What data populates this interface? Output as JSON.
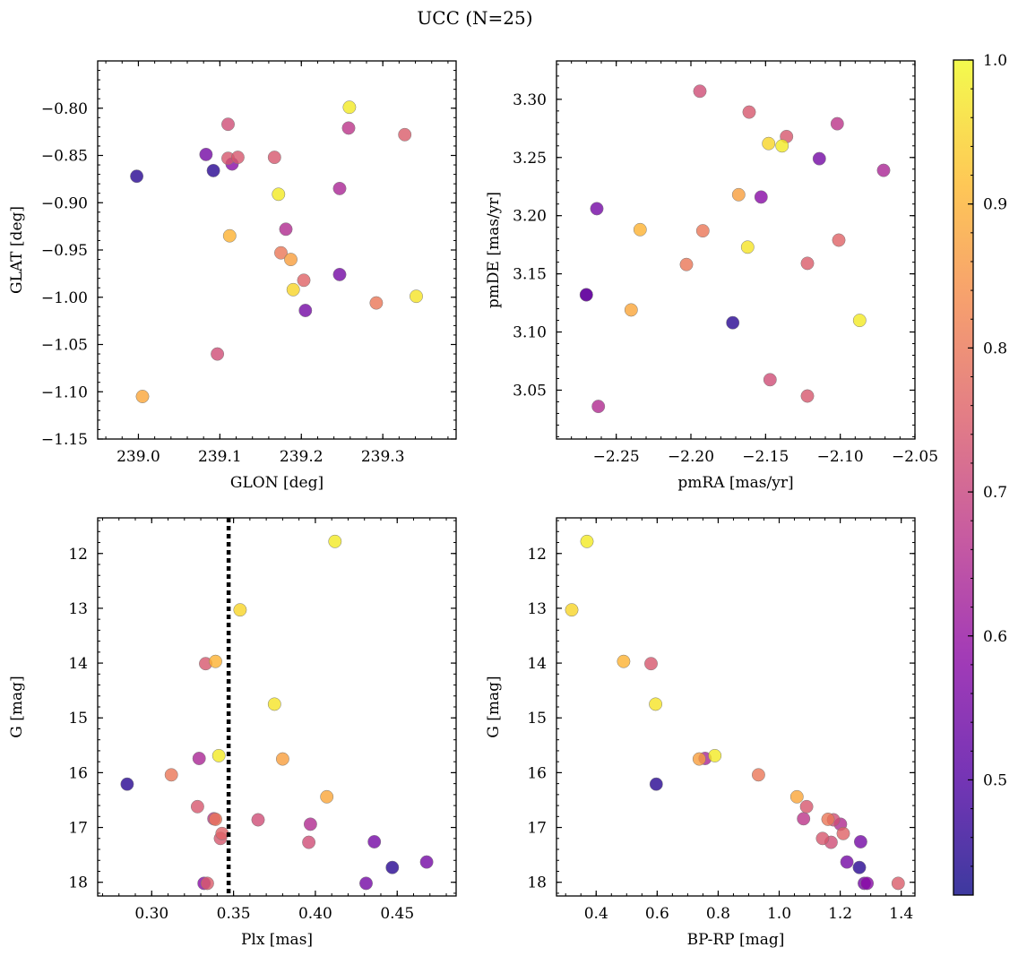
{
  "figure": {
    "title": "UCC (N=25)"
  },
  "colorbar": {
    "min": 0.42,
    "max": 1.0,
    "ticks": [
      0.5,
      0.6,
      0.7,
      0.8,
      0.9,
      1.0
    ],
    "tick_labels": [
      "0.5",
      "0.6",
      "0.7",
      "0.8",
      "0.9",
      "1.0"
    ],
    "colormap": "plasma",
    "alpha": 0.8
  },
  "stars": [
    {
      "glon": 238.998,
      "glat": -0.872,
      "pmra": -2.27,
      "pmde": 3.132,
      "plx": 0.285,
      "g": 16.21,
      "bprp": 0.597,
      "p": 0.45
    },
    {
      "glon": 239.005,
      "glat": -1.105,
      "pmra": -2.24,
      "pmde": 3.119,
      "plx": 0.407,
      "g": 16.44,
      "bprp": 1.058,
      "p": 0.88
    },
    {
      "glon": 239.083,
      "glat": -0.849,
      "pmra": -2.263,
      "pmde": 3.206,
      "plx": 0.468,
      "g": 17.63,
      "bprp": 1.222,
      "p": 0.55
    },
    {
      "glon": 239.092,
      "glat": -0.866,
      "pmra": -2.172,
      "pmde": 3.108,
      "plx": 0.447,
      "g": 17.73,
      "bprp": 1.263,
      "p": 0.45
    },
    {
      "glon": 239.097,
      "glat": -1.06,
      "pmra": -2.147,
      "pmde": 3.059,
      "plx": 0.365,
      "g": 16.86,
      "bprp": 1.178,
      "p": 0.72
    },
    {
      "glon": 239.11,
      "glat": -0.817,
      "pmra": -2.194,
      "pmde": 3.307,
      "plx": 0.396,
      "g": 17.27,
      "bprp": 1.17,
      "p": 0.72
    },
    {
      "glon": 239.11,
      "glat": -0.853,
      "pmra": -2.122,
      "pmde": 3.045,
      "plx": 0.328,
      "g": 16.62,
      "bprp": 1.09,
      "p": 0.74
    },
    {
      "glon": 239.112,
      "glat": -0.935,
      "pmra": -2.234,
      "pmde": 3.188,
      "plx": 0.339,
      "g": 13.97,
      "bprp": 0.49,
      "p": 0.9
    },
    {
      "glon": 239.115,
      "glat": -0.859,
      "pmra": -2.153,
      "pmde": 3.216,
      "plx": 0.332,
      "g": 18.02,
      "bprp": 1.288,
      "p": 0.58
    },
    {
      "glon": 239.122,
      "glat": -0.852,
      "pmra": -2.136,
      "pmde": 3.268,
      "plx": 0.333,
      "g": 14.01,
      "bprp": 0.58,
      "p": 0.74
    },
    {
      "glon": 239.167,
      "glat": -0.852,
      "pmra": -2.161,
      "pmde": 3.289,
      "plx": 0.342,
      "g": 17.2,
      "bprp": 1.142,
      "p": 0.74
    },
    {
      "glon": 239.172,
      "glat": -0.891,
      "pmra": -2.139,
      "pmde": 3.26,
      "plx": 0.341,
      "g": 15.69,
      "bprp": 0.789,
      "p": 0.98
    },
    {
      "glon": 239.175,
      "glat": -0.953,
      "pmra": -2.203,
      "pmde": 3.158,
      "plx": 0.312,
      "g": 16.04,
      "bprp": 0.932,
      "p": 0.8
    },
    {
      "glon": 239.181,
      "glat": -0.928,
      "pmra": -2.262,
      "pmde": 3.036,
      "plx": 0.397,
      "g": 16.94,
      "bprp": 1.201,
      "p": 0.65
    },
    {
      "glon": 239.187,
      "glat": -0.96,
      "pmra": -2.168,
      "pmde": 3.218,
      "plx": 0.38,
      "g": 15.75,
      "bprp": 0.738,
      "p": 0.87
    },
    {
      "glon": 239.19,
      "glat": -0.992,
      "pmra": -2.148,
      "pmde": 3.262,
      "plx": 0.354,
      "g": 13.03,
      "bprp": 0.32,
      "p": 0.95
    },
    {
      "glon": 239.203,
      "glat": -0.982,
      "pmra": -2.101,
      "pmde": 3.179,
      "plx": 0.343,
      "g": 17.11,
      "bprp": 1.21,
      "p": 0.76
    },
    {
      "glon": 239.205,
      "glat": -1.014,
      "pmra": -2.114,
      "pmde": 3.249,
      "plx": 0.431,
      "g": 18.02,
      "bprp": 1.279,
      "p": 0.55
    },
    {
      "glon": 239.247,
      "glat": -0.885,
      "pmra": -2.071,
      "pmde": 3.239,
      "plx": 0.329,
      "g": 15.74,
      "bprp": 0.757,
      "p": 0.64
    },
    {
      "glon": 239.247,
      "glat": -0.976,
      "pmra": -2.27,
      "pmde": 3.132,
      "plx": 0.436,
      "g": 17.26,
      "bprp": 1.267,
      "p": 0.55
    },
    {
      "glon": 239.258,
      "glat": -0.821,
      "pmra": -2.102,
      "pmde": 3.279,
      "plx": 0.338,
      "g": 16.84,
      "bprp": 1.08,
      "p": 0.67
    },
    {
      "glon": 239.259,
      "glat": -0.799,
      "pmra": -2.087,
      "pmde": 3.11,
      "plx": 0.412,
      "g": 11.78,
      "bprp": 0.37,
      "p": 0.98
    },
    {
      "glon": 239.292,
      "glat": -1.006,
      "pmra": -2.192,
      "pmde": 3.187,
      "plx": 0.339,
      "g": 16.85,
      "bprp": 1.16,
      "p": 0.8
    },
    {
      "glon": 239.327,
      "glat": -0.828,
      "pmra": -2.122,
      "pmde": 3.159,
      "plx": 0.334,
      "g": 18.02,
      "bprp": 1.39,
      "p": 0.75
    },
    {
      "glon": 239.341,
      "glat": -0.999,
      "pmra": -2.162,
      "pmde": 3.173,
      "plx": 0.375,
      "g": 14.75,
      "bprp": 0.595,
      "p": 0.97
    }
  ],
  "chart_data": [
    {
      "type": "scatter",
      "xfield": "glon",
      "yfield": "glat",
      "xlabel": "GLON [deg]",
      "ylabel": "GLAT [deg]",
      "xlim": [
        238.95,
        239.39
      ],
      "ylim": [
        -1.15,
        -0.75
      ],
      "xticks": [
        239.0,
        239.1,
        239.2,
        239.3
      ],
      "xtick_labels": [
        "239.0",
        "239.1",
        "239.2",
        "239.3"
      ],
      "xminor": 0.02,
      "yticks": [
        -1.15,
        -1.1,
        -1.05,
        -1.0,
        -0.95,
        -0.9,
        -0.85,
        -0.8
      ],
      "ytick_labels": [
        "−1.15",
        "−1.10",
        "−1.05",
        "−1.00",
        "−0.95",
        "−0.90",
        "−0.85",
        "−0.80"
      ],
      "yminor": 0.01,
      "yinvert": false,
      "vline": null
    },
    {
      "type": "scatter",
      "xfield": "pmra",
      "yfield": "pmde",
      "xlabel": "pmRA [mas/yr]",
      "ylabel": "pmDE [mas/yr]",
      "xlim": [
        -2.29,
        -2.05
      ],
      "ylim": [
        3.008,
        3.333
      ],
      "xticks": [
        -2.25,
        -2.2,
        -2.15,
        -2.1,
        -2.05
      ],
      "xtick_labels": [
        "−2.25",
        "−2.20",
        "−2.15",
        "−2.10",
        "−2.05"
      ],
      "xminor": 0.01,
      "yticks": [
        3.05,
        3.1,
        3.15,
        3.2,
        3.25,
        3.3
      ],
      "ytick_labels": [
        "3.05",
        "3.10",
        "3.15",
        "3.20",
        "3.25",
        "3.30"
      ],
      "yminor": 0.01,
      "yinvert": false,
      "vline": null
    },
    {
      "type": "scatter",
      "xfield": "plx",
      "yfield": "g",
      "xlabel": "Plx [mas]",
      "ylabel": "G [mag]",
      "xlim": [
        0.267,
        0.486
      ],
      "ylim": [
        11.35,
        18.25
      ],
      "xticks": [
        0.3,
        0.35,
        0.4,
        0.45
      ],
      "xtick_labels": [
        "0.30",
        "0.35",
        "0.40",
        "0.45"
      ],
      "xminor": 0.01,
      "yticks": [
        12,
        13,
        14,
        15,
        16,
        17,
        18
      ],
      "ytick_labels": [
        "12",
        "13",
        "14",
        "15",
        "16",
        "17",
        "18"
      ],
      "yminor": 0.2,
      "yinvert": true,
      "vline": 0.347
    },
    {
      "type": "scatter",
      "xfield": "bprp",
      "yfield": "g",
      "xlabel": "BP-RP [mag]",
      "ylabel": "G [mag]",
      "xlim": [
        0.27,
        1.445
      ],
      "ylim": [
        11.35,
        18.25
      ],
      "xticks": [
        0.4,
        0.6,
        0.8,
        1.0,
        1.2,
        1.4
      ],
      "xtick_labels": [
        "0.4",
        "0.6",
        "0.8",
        "1.0",
        "1.2",
        "1.4"
      ],
      "xminor": 0.05,
      "yticks": [
        12,
        13,
        14,
        15,
        16,
        17,
        18
      ],
      "ytick_labels": [
        "12",
        "13",
        "14",
        "15",
        "16",
        "17",
        "18"
      ],
      "yminor": 0.2,
      "yinvert": true,
      "vline": null
    }
  ]
}
